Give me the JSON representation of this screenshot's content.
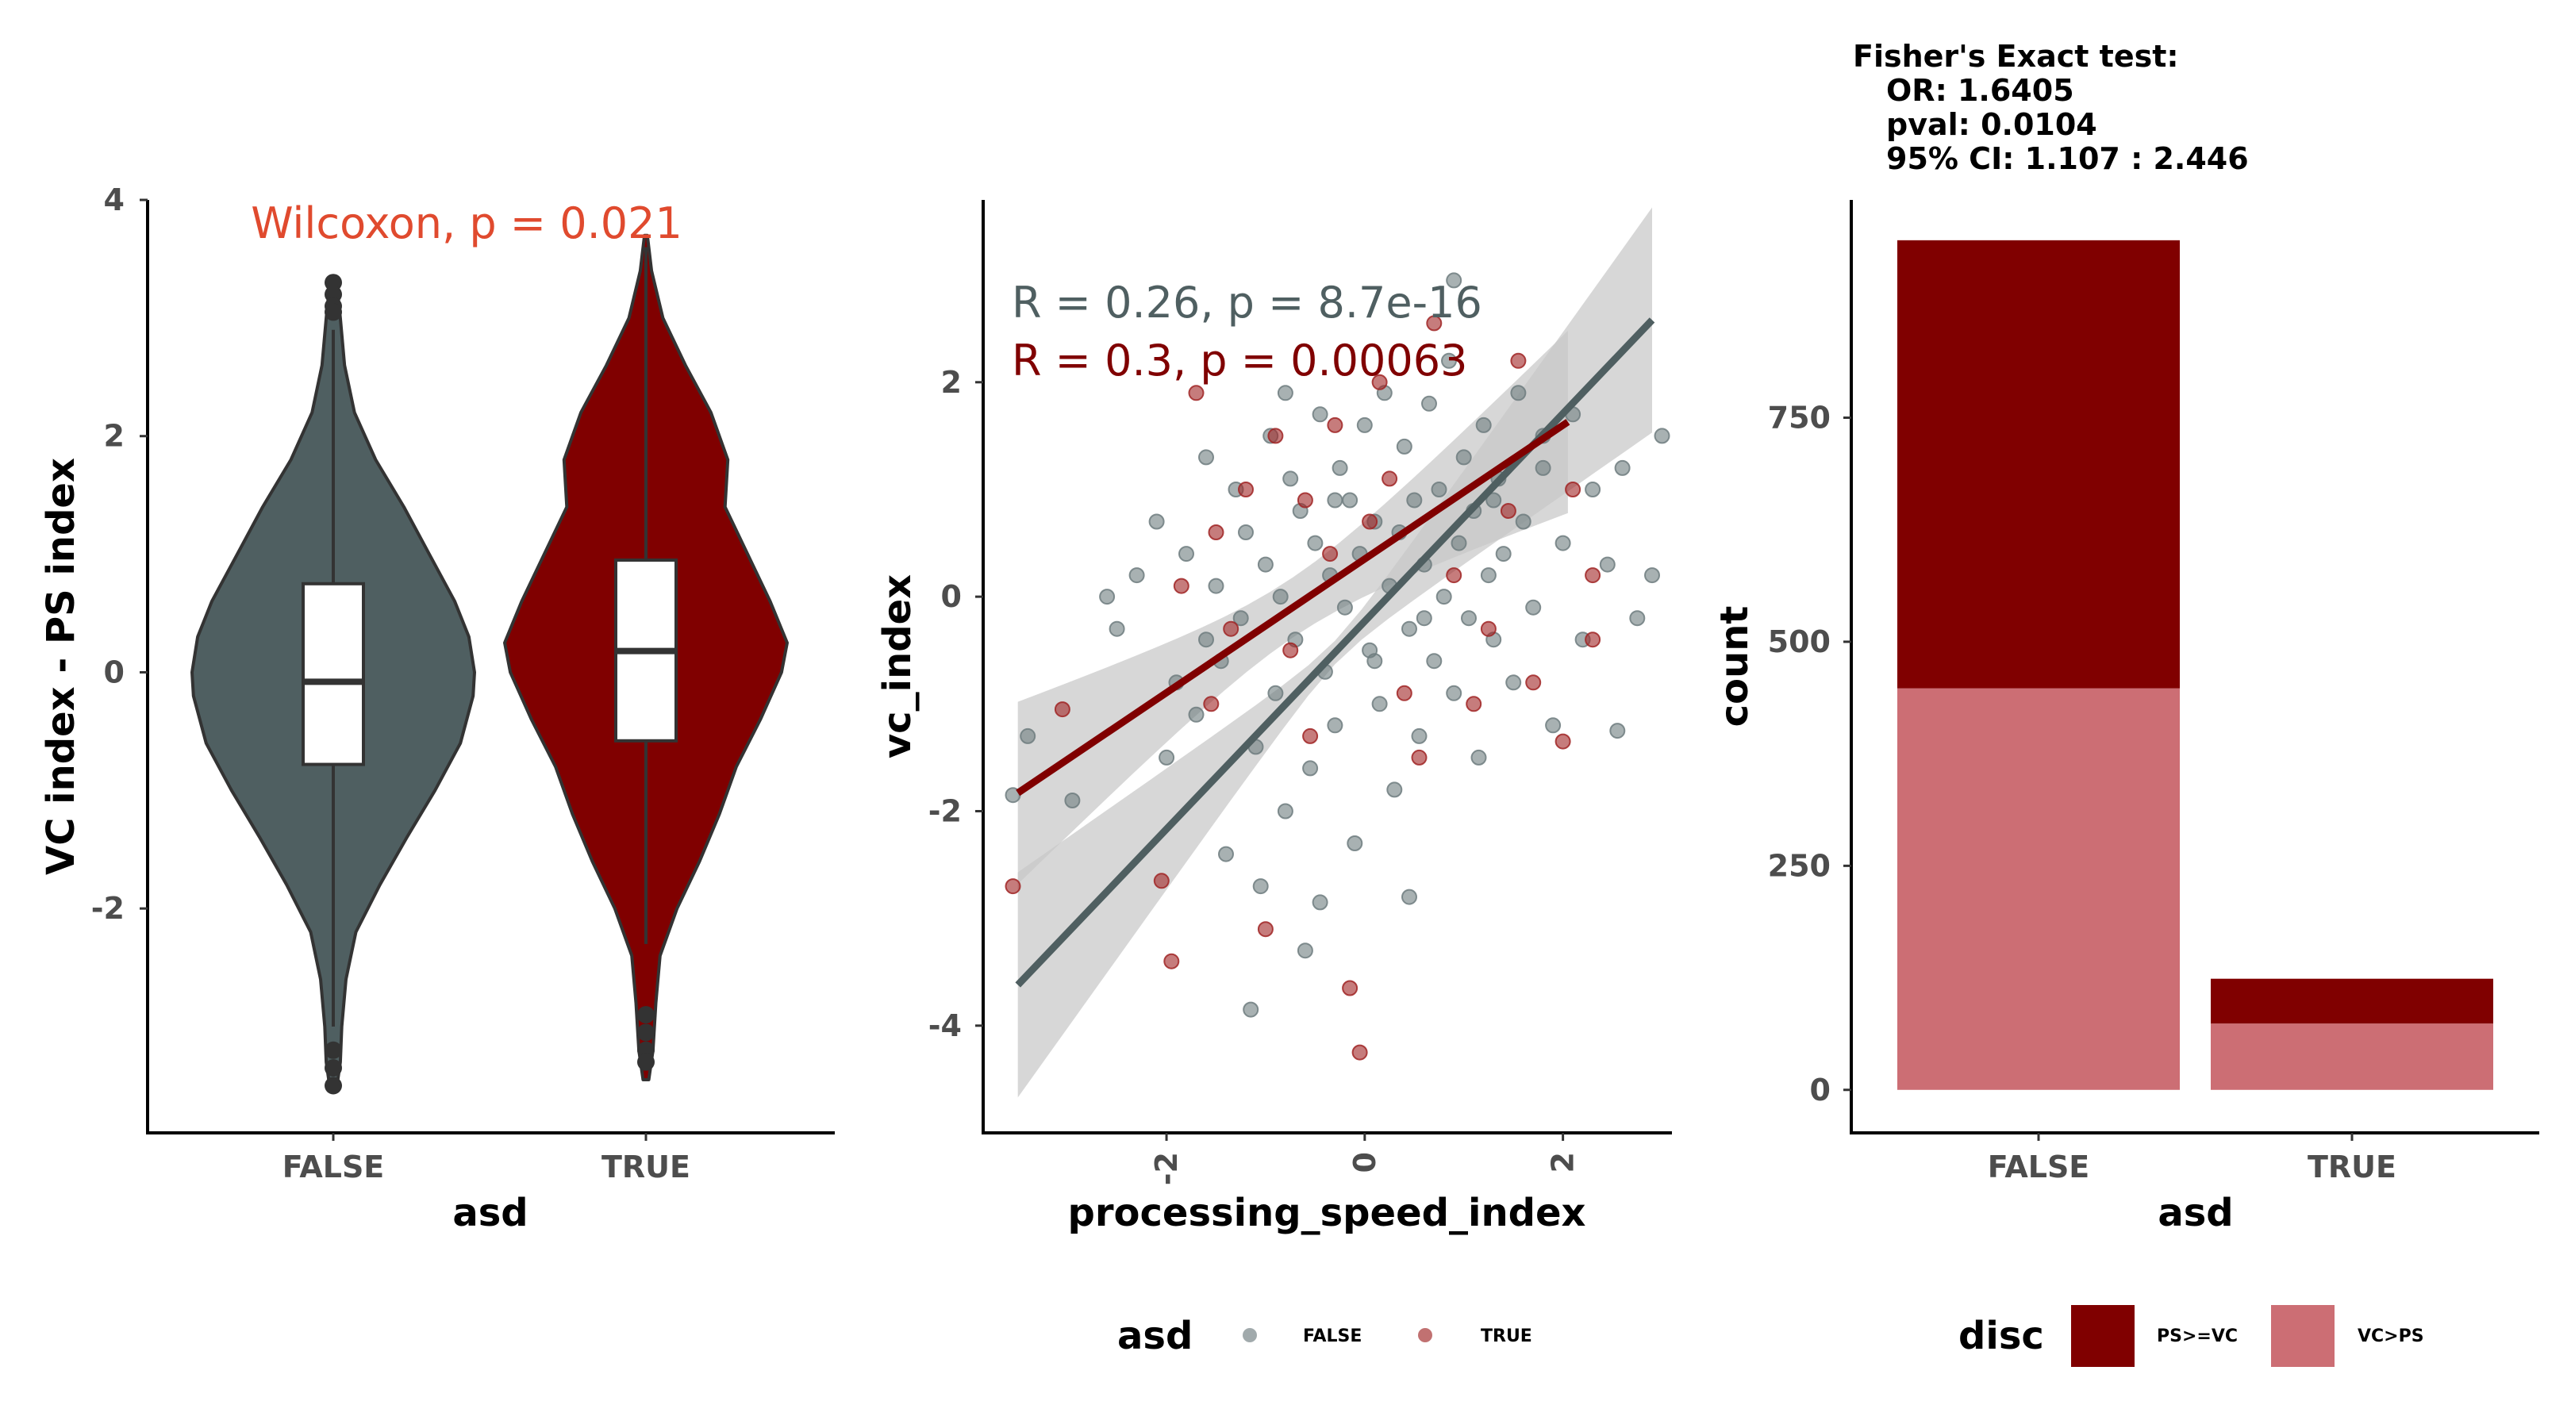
{
  "colors": {
    "false_fill": "#4f5f61",
    "true_fill": "#800000",
    "false_point": "#6e7d7f",
    "true_point": "#a02525",
    "wilcoxon_text": "#e04a2e",
    "r_false_text": "#4f5f61",
    "r_true_text": "#800000",
    "ps_ge_vc": "#800000",
    "vc_gt_ps": "#cc6e74",
    "band": "#c8c8c8"
  },
  "chart_data": [
    {
      "type": "violin",
      "title": "",
      "xlabel": "asd",
      "ylabel": "VC index - PS index",
      "categories": [
        "FALSE",
        "TRUE"
      ],
      "ylim": [
        -3.9,
        4.0
      ],
      "y_ticks": [
        -2,
        0,
        2,
        4
      ],
      "y_tick_labels": [
        "-2",
        "0",
        "2",
        "4"
      ],
      "annotation": "Wilcoxon, p = 0.021",
      "groups": [
        {
          "name": "FALSE",
          "q1": -0.78,
          "median": -0.08,
          "q3": 0.75,
          "whisker_low": -3.0,
          "whisker_high": 2.9,
          "outliers": [
            3.3,
            3.2,
            3.1,
            3.05,
            -3.2,
            -3.35,
            -3.5
          ],
          "density": [
            [
              -3.55,
              0.02
            ],
            [
              -3.3,
              0.05
            ],
            [
              -3.0,
              0.06
            ],
            [
              -2.6,
              0.09
            ],
            [
              -2.2,
              0.16
            ],
            [
              -1.8,
              0.33
            ],
            [
              -1.4,
              0.52
            ],
            [
              -1.0,
              0.72
            ],
            [
              -0.6,
              0.9
            ],
            [
              -0.2,
              0.99
            ],
            [
              0.0,
              1.0
            ],
            [
              0.3,
              0.96
            ],
            [
              0.6,
              0.86
            ],
            [
              1.0,
              0.68
            ],
            [
              1.4,
              0.5
            ],
            [
              1.8,
              0.3
            ],
            [
              2.2,
              0.15
            ],
            [
              2.6,
              0.08
            ],
            [
              3.0,
              0.05
            ],
            [
              3.35,
              0.02
            ]
          ]
        },
        {
          "name": "TRUE",
          "q1": -0.58,
          "median": 0.18,
          "q3": 0.95,
          "whisker_low": -2.3,
          "whisker_high": 3.6,
          "outliers": [
            -2.9,
            -3.05,
            -3.2,
            -3.3
          ],
          "density": [
            [
              -3.45,
              0.02
            ],
            [
              -3.2,
              0.05
            ],
            [
              -2.8,
              0.07
            ],
            [
              -2.4,
              0.1
            ],
            [
              -2.0,
              0.22
            ],
            [
              -1.6,
              0.38
            ],
            [
              -1.2,
              0.52
            ],
            [
              -0.8,
              0.64
            ],
            [
              -0.4,
              0.81
            ],
            [
              0.0,
              0.96
            ],
            [
              0.25,
              1.0
            ],
            [
              0.6,
              0.88
            ],
            [
              1.0,
              0.72
            ],
            [
              1.4,
              0.56
            ],
            [
              1.8,
              0.58
            ],
            [
              2.2,
              0.46
            ],
            [
              2.6,
              0.28
            ],
            [
              3.0,
              0.12
            ],
            [
              3.4,
              0.04
            ],
            [
              3.7,
              0.01
            ]
          ]
        }
      ]
    },
    {
      "type": "scatter",
      "title": "",
      "xlabel": "processing_speed_index",
      "ylabel": "vc_index",
      "xlim": [
        -3.85,
        3.1
      ],
      "ylim": [
        -5.0,
        3.7
      ],
      "x_ticks": [
        -2,
        0,
        2
      ],
      "x_tick_labels": [
        "-2",
        "0",
        "2"
      ],
      "y_ticks": [
        -4,
        -2,
        0,
        2
      ],
      "y_tick_labels": [
        "-4",
        "-2",
        "0",
        "2"
      ],
      "annotations": [
        "R = 0.26, p = 8.7e-16",
        "R = 0.3, p = 0.00063"
      ],
      "legend": {
        "title": "asd",
        "entries": [
          "FALSE",
          "TRUE"
        ],
        "position": "bottom"
      },
      "series": [
        {
          "name": "FALSE",
          "fit": {
            "x": [
              -3.5,
              2.9
            ],
            "y": [
              -3.62,
              2.58
            ]
          },
          "points": [
            [
              -3.55,
              -1.85
            ],
            [
              -3.4,
              -1.3
            ],
            [
              -2.95,
              -1.9
            ],
            [
              -2.6,
              0.0
            ],
            [
              -2.5,
              -0.3
            ],
            [
              -2.3,
              0.2
            ],
            [
              -2.1,
              0.7
            ],
            [
              -2.0,
              -1.5
            ],
            [
              -1.9,
              -0.8
            ],
            [
              -1.8,
              0.4
            ],
            [
              -1.7,
              -1.1
            ],
            [
              -1.6,
              1.3
            ],
            [
              -1.5,
              0.1
            ],
            [
              -1.45,
              -0.6
            ],
            [
              -1.4,
              -2.4
            ],
            [
              -1.3,
              1.0
            ],
            [
              -1.25,
              -0.2
            ],
            [
              -1.2,
              0.6
            ],
            [
              -1.1,
              -1.4
            ],
            [
              -1.05,
              -2.7
            ],
            [
              -1.0,
              0.3
            ],
            [
              -0.95,
              1.5
            ],
            [
              -0.9,
              -0.9
            ],
            [
              -0.85,
              0.0
            ],
            [
              -0.8,
              -2.0
            ],
            [
              -0.75,
              1.1
            ],
            [
              -0.7,
              -0.4
            ],
            [
              -0.65,
              0.8
            ],
            [
              -0.6,
              -3.3
            ],
            [
              -0.55,
              -1.6
            ],
            [
              -0.5,
              0.5
            ],
            [
              -0.45,
              1.7
            ],
            [
              -0.4,
              -0.7
            ],
            [
              -0.35,
              0.2
            ],
            [
              -0.3,
              -1.2
            ],
            [
              -0.25,
              1.2
            ],
            [
              -0.2,
              -0.1
            ],
            [
              -0.15,
              0.9
            ],
            [
              -0.1,
              -2.3
            ],
            [
              -0.05,
              0.4
            ],
            [
              0.0,
              1.6
            ],
            [
              0.05,
              -0.5
            ],
            [
              0.1,
              0.7
            ],
            [
              0.15,
              -1.0
            ],
            [
              0.2,
              1.9
            ],
            [
              0.25,
              0.1
            ],
            [
              0.3,
              -1.8
            ],
            [
              0.35,
              0.6
            ],
            [
              0.4,
              1.4
            ],
            [
              0.45,
              -0.3
            ],
            [
              0.5,
              0.9
            ],
            [
              0.55,
              -1.3
            ],
            [
              0.6,
              0.3
            ],
            [
              0.65,
              1.8
            ],
            [
              0.7,
              -0.6
            ],
            [
              0.75,
              1.0
            ],
            [
              0.8,
              0.0
            ],
            [
              0.85,
              2.2
            ],
            [
              0.9,
              -0.9
            ],
            [
              0.95,
              0.5
            ],
            [
              1.0,
              1.3
            ],
            [
              1.05,
              -0.2
            ],
            [
              1.1,
              0.8
            ],
            [
              1.15,
              -1.5
            ],
            [
              1.2,
              1.6
            ],
            [
              1.25,
              0.2
            ],
            [
              1.3,
              -0.4
            ],
            [
              1.35,
              1.1
            ],
            [
              1.4,
              0.4
            ],
            [
              1.5,
              -0.8
            ],
            [
              1.55,
              1.9
            ],
            [
              1.6,
              0.7
            ],
            [
              1.7,
              -0.1
            ],
            [
              1.8,
              1.2
            ],
            [
              1.9,
              -1.2
            ],
            [
              2.0,
              0.5
            ],
            [
              2.1,
              1.7
            ],
            [
              2.2,
              -0.4
            ],
            [
              2.3,
              1.0
            ],
            [
              2.45,
              0.3
            ],
            [
              2.6,
              1.2
            ],
            [
              2.75,
              -0.2
            ],
            [
              2.9,
              0.2
            ],
            [
              3.0,
              1.5
            ],
            [
              -1.15,
              -3.85
            ],
            [
              -0.45,
              -2.85
            ],
            [
              0.45,
              -2.8
            ],
            [
              0.9,
              2.95
            ],
            [
              1.8,
              1.5
            ],
            [
              2.55,
              -1.25
            ],
            [
              -0.8,
              1.9
            ],
            [
              0.1,
              -0.6
            ],
            [
              -0.3,
              0.9
            ],
            [
              0.6,
              -0.2
            ],
            [
              1.3,
              0.9
            ],
            [
              -1.6,
              -0.4
            ]
          ]
        },
        {
          "name": "TRUE",
          "fit": {
            "x": [
              -3.5,
              2.05
            ],
            "y": [
              -1.83,
              1.63
            ]
          },
          "points": [
            [
              -3.55,
              -2.7
            ],
            [
              -3.05,
              -1.05
            ],
            [
              -2.05,
              -2.65
            ],
            [
              -1.95,
              -3.4
            ],
            [
              -1.7,
              1.9
            ],
            [
              -1.5,
              0.6
            ],
            [
              -1.35,
              -0.3
            ],
            [
              -1.2,
              1.0
            ],
            [
              -1.0,
              -3.1
            ],
            [
              -0.9,
              1.5
            ],
            [
              -0.75,
              -0.5
            ],
            [
              -0.55,
              -1.3
            ],
            [
              -0.35,
              0.4
            ],
            [
              -0.3,
              1.6
            ],
            [
              -0.15,
              -3.65
            ],
            [
              -0.05,
              -4.25
            ],
            [
              0.05,
              0.7
            ],
            [
              0.25,
              1.1
            ],
            [
              0.4,
              -0.9
            ],
            [
              0.55,
              -1.5
            ],
            [
              0.7,
              2.55
            ],
            [
              0.9,
              0.2
            ],
            [
              1.1,
              -1.0
            ],
            [
              1.25,
              -0.3
            ],
            [
              1.45,
              0.8
            ],
            [
              1.7,
              -0.8
            ],
            [
              2.0,
              -1.35
            ],
            [
              2.1,
              1.0
            ],
            [
              2.3,
              -0.4
            ],
            [
              -1.85,
              0.1
            ],
            [
              -1.55,
              -1.0
            ],
            [
              -0.6,
              0.9
            ],
            [
              0.15,
              2.0
            ],
            [
              1.55,
              2.2
            ],
            [
              2.3,
              0.2
            ]
          ]
        }
      ]
    },
    {
      "type": "bar",
      "stacked": true,
      "title": "",
      "xlabel": "asd",
      "ylabel": "count",
      "categories": [
        "FALSE",
        "TRUE"
      ],
      "ylim": [
        -48,
        993
      ],
      "y_ticks": [
        0,
        250,
        500,
        750
      ],
      "y_tick_labels": [
        "0",
        "250",
        "500",
        "750"
      ],
      "legend": {
        "title": "disc",
        "position": "bottom"
      },
      "series": [
        {
          "name": "VC>PS",
          "values": [
            448,
            74
          ]
        },
        {
          "name": "PS>=VC",
          "values": [
            500,
            50
          ]
        }
      ],
      "fisher": {
        "heading": "Fisher's Exact test:",
        "lines": [
          "OR: 1.6405",
          "pval: 0.0104",
          "95% CI: 1.107 : 2.446"
        ]
      }
    }
  ]
}
